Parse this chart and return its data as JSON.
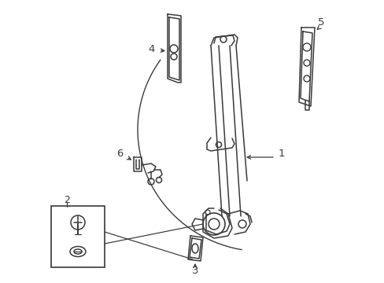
{
  "background_color": "#ffffff",
  "line_color": "#3a3a3a",
  "line_width": 1.1,
  "figsize": [
    4.89,
    3.6
  ],
  "dpi": 100
}
